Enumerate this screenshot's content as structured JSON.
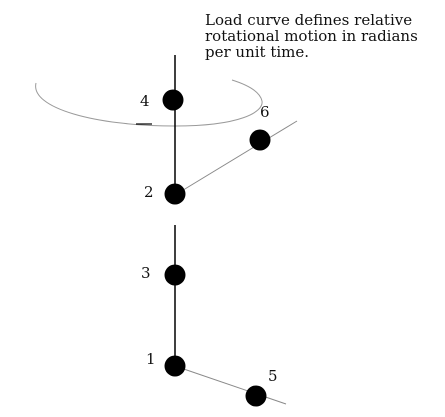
{
  "annotation": {
    "lines": [
      "Load curve defines relative",
      "rotational motion in radians",
      "per unit time."
    ]
  },
  "nodes": [
    {
      "id": "1",
      "label": "1"
    },
    {
      "id": "2",
      "label": "2"
    },
    {
      "id": "3",
      "label": "3"
    },
    {
      "id": "4",
      "label": "4"
    },
    {
      "id": "5",
      "label": "5"
    },
    {
      "id": "6",
      "label": "6"
    }
  ],
  "colors": {
    "node": "#000000",
    "line": "#000000",
    "thin_line": "#8a8a8a",
    "ellipse": "#9a9a9a"
  }
}
